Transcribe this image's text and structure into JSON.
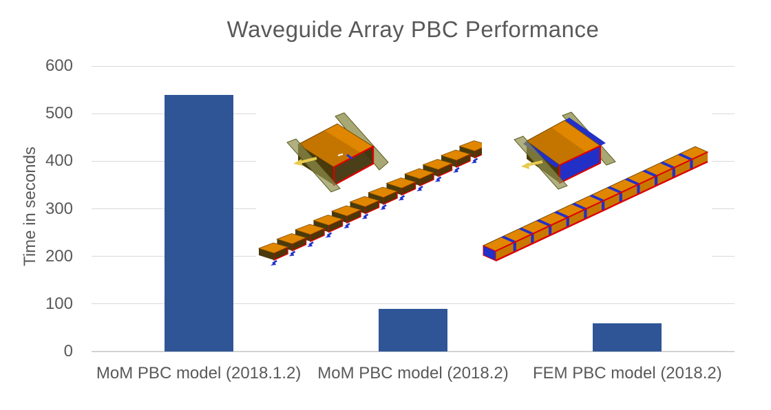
{
  "chart_data": {
    "type": "bar",
    "title": "Waveguide Array PBC Performance",
    "ylabel": "Time in seconds",
    "xlabel": "",
    "categories": [
      "MoM PBC model (2018.1.2)",
      "MoM PBC model (2018.2)",
      "FEM PBC model (2018.2)"
    ],
    "values": [
      540,
      90,
      60
    ],
    "ylim": [
      0,
      600
    ],
    "yticks": [
      0,
      100,
      200,
      300,
      400,
      500,
      600
    ],
    "grid": true,
    "legend": false,
    "bar_color": "#2F5597",
    "gridline_color": "#D9D9D9",
    "text_color": "#595959"
  },
  "illustrations": [
    {
      "name": "mom-pbc-waveguide-render",
      "parts": [
        "waveguide-unit-cell-with-pbc-walls",
        "12-element-waveguide-array"
      ]
    },
    {
      "name": "fem-pbc-waveguide-render",
      "parts": [
        "waveguide-unit-cell-with-pbc-walls",
        "connected-12-element-waveguide-array"
      ]
    }
  ]
}
